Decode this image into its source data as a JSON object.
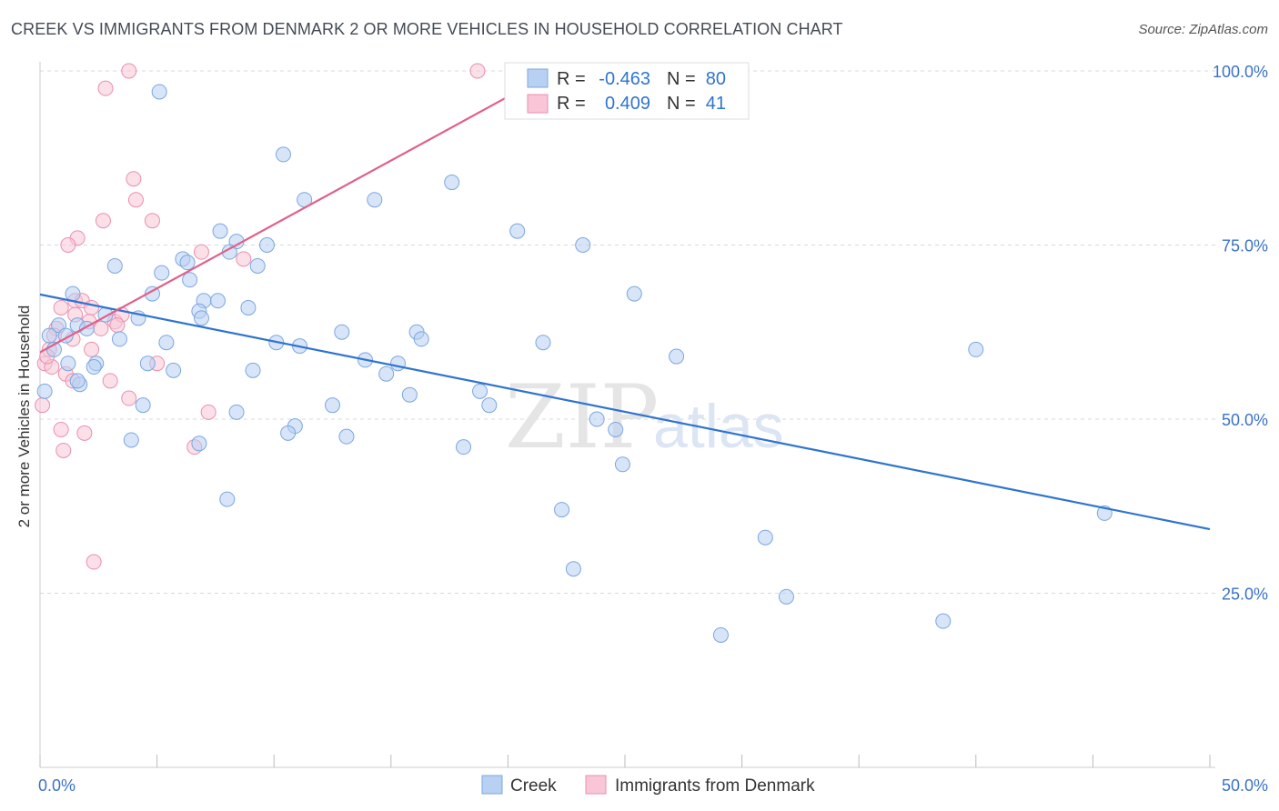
{
  "title": "CREEK VS IMMIGRANTS FROM DENMARK 2 OR MORE VEHICLES IN HOUSEHOLD CORRELATION CHART",
  "source": "Source: ZipAtlas.com",
  "watermark": {
    "zip": "ZIP",
    "atlas": "atlas"
  },
  "colors": {
    "blue_fill": "#b8d0f2",
    "blue_stroke": "#7aa7e0",
    "blue_line": "#2f74d0",
    "pink_fill": "#f8c6d6",
    "pink_stroke": "#eb8fae",
    "pink_line": "#e0608a",
    "grid": "#d8d8d8",
    "axis_label": "#3a72c8"
  },
  "chart_data": {
    "type": "scatter",
    "xlabel": "",
    "ylabel": "2 or more Vehicles in Household",
    "xlim": [
      0,
      50
    ],
    "ylim": [
      0,
      100
    ],
    "x_tick_labels": [
      "0.0%",
      "50.0%"
    ],
    "y_tick_labels": [
      "25.0%",
      "50.0%",
      "75.0%",
      "100.0%"
    ],
    "y_ticks": [
      25,
      50,
      75,
      100
    ],
    "legend": {
      "rows": [
        {
          "r_label": "R =",
          "r_value": "-0.463",
          "n_label": "N =",
          "n_value": "80"
        },
        {
          "r_label": "R =",
          "r_value": "0.409",
          "n_label": "N =",
          "n_value": "41"
        }
      ]
    },
    "bottom_legend": [
      "Creek",
      "Immigrants from Denmark"
    ],
    "series": [
      {
        "name": "Creek",
        "trend": {
          "x0": 0,
          "y0": 67.9,
          "x1": 50,
          "y1": 34.2
        },
        "points": [
          [
            5.1,
            97
          ],
          [
            10.4,
            88
          ],
          [
            11.3,
            81.5
          ],
          [
            14.3,
            81.5
          ],
          [
            17.6,
            84
          ],
          [
            20.4,
            77
          ],
          [
            23.2,
            75
          ],
          [
            7.7,
            77
          ],
          [
            8.4,
            75.5
          ],
          [
            9.7,
            75
          ],
          [
            3.2,
            72
          ],
          [
            6.1,
            73
          ],
          [
            6.3,
            72.5
          ],
          [
            9.3,
            72
          ],
          [
            8.1,
            74
          ],
          [
            5.2,
            71
          ],
          [
            6.4,
            70
          ],
          [
            1.4,
            68
          ],
          [
            4.8,
            68
          ],
          [
            25.4,
            68
          ],
          [
            7,
            67
          ],
          [
            7.6,
            67
          ],
          [
            8.9,
            66
          ],
          [
            2.8,
            65
          ],
          [
            4.2,
            64.5
          ],
          [
            6.8,
            65.5
          ],
          [
            6.9,
            64.5
          ],
          [
            0.8,
            63.5
          ],
          [
            1.6,
            63.5
          ],
          [
            2,
            63
          ],
          [
            1.1,
            62
          ],
          [
            3.4,
            61.5
          ],
          [
            12.9,
            62.5
          ],
          [
            16.1,
            62.5
          ],
          [
            16.3,
            61.5
          ],
          [
            21.5,
            61
          ],
          [
            5.4,
            61
          ],
          [
            10.1,
            61
          ],
          [
            11.1,
            60.5
          ],
          [
            0.6,
            60
          ],
          [
            40,
            60
          ],
          [
            27.2,
            59
          ],
          [
            1.2,
            58
          ],
          [
            2.4,
            58
          ],
          [
            4.6,
            58
          ],
          [
            13.9,
            58.5
          ],
          [
            15.3,
            58
          ],
          [
            2.3,
            57.5
          ],
          [
            5.7,
            57
          ],
          [
            9.1,
            57
          ],
          [
            14.8,
            56.5
          ],
          [
            1.7,
            55
          ],
          [
            18.8,
            54
          ],
          [
            15.8,
            53.5
          ],
          [
            4.4,
            52
          ],
          [
            12.5,
            52
          ],
          [
            19.2,
            52
          ],
          [
            8.4,
            51
          ],
          [
            10.9,
            49
          ],
          [
            23.8,
            50
          ],
          [
            24.6,
            48.5
          ],
          [
            10.6,
            48
          ],
          [
            3.9,
            47
          ],
          [
            13.1,
            47.5
          ],
          [
            6.8,
            46.5
          ],
          [
            18.1,
            46
          ],
          [
            24.9,
            43.5
          ],
          [
            8,
            38.5
          ],
          [
            22.3,
            37
          ],
          [
            45.5,
            36.5
          ],
          [
            31,
            33
          ],
          [
            22.8,
            28.5
          ],
          [
            31.9,
            24.5
          ],
          [
            38.6,
            21
          ],
          [
            29.1,
            19
          ],
          [
            0.2,
            54
          ],
          [
            0.4,
            62
          ],
          [
            1.6,
            55.5
          ]
        ]
      },
      {
        "name": "Immigrants from Denmark",
        "trend": {
          "x0": 0,
          "y0": 59.6,
          "x1": 20,
          "y1": 96.3
        },
        "points": [
          [
            3.8,
            100
          ],
          [
            18.7,
            100
          ],
          [
            2.8,
            97.5
          ],
          [
            4,
            84.5
          ],
          [
            4.1,
            81.5
          ],
          [
            4.8,
            78.5
          ],
          [
            2.7,
            78.5
          ],
          [
            1.6,
            76
          ],
          [
            1.2,
            75
          ],
          [
            6.9,
            74
          ],
          [
            8.7,
            73
          ],
          [
            0.9,
            66
          ],
          [
            1.5,
            67
          ],
          [
            1.8,
            67
          ],
          [
            2.2,
            66
          ],
          [
            1.5,
            65
          ],
          [
            2.1,
            64
          ],
          [
            2.6,
            63
          ],
          [
            3.2,
            64
          ],
          [
            3.5,
            65
          ],
          [
            0.7,
            63
          ],
          [
            0.6,
            62
          ],
          [
            1.4,
            61.5
          ],
          [
            0.4,
            60
          ],
          [
            0.2,
            58
          ],
          [
            2.2,
            60
          ],
          [
            0.5,
            57.5
          ],
          [
            1.1,
            56.5
          ],
          [
            1.4,
            55.5
          ],
          [
            3,
            55.5
          ],
          [
            3.8,
            53
          ],
          [
            7.2,
            51
          ],
          [
            0.1,
            52
          ],
          [
            0.9,
            48.5
          ],
          [
            1.9,
            48
          ],
          [
            1,
            45.5
          ],
          [
            6.6,
            46
          ],
          [
            5,
            58
          ],
          [
            2.3,
            29.5
          ],
          [
            0.3,
            59
          ],
          [
            3.3,
            63.5
          ]
        ]
      }
    ]
  }
}
